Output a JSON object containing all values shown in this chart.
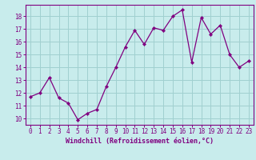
{
  "x": [
    0,
    1,
    2,
    3,
    4,
    5,
    6,
    7,
    8,
    9,
    10,
    11,
    12,
    13,
    14,
    15,
    16,
    17,
    18,
    19,
    20,
    21,
    22,
    23
  ],
  "y": [
    11.7,
    12.0,
    13.2,
    11.6,
    11.2,
    9.9,
    10.4,
    10.7,
    12.5,
    14.0,
    15.6,
    16.9,
    15.8,
    17.1,
    16.9,
    18.0,
    18.5,
    14.4,
    17.9,
    16.6,
    17.3,
    15.0,
    14.0,
    14.5
  ],
  "line_color": "#800080",
  "marker": "D",
  "marker_size": 2.2,
  "background_color": "#c8ecec",
  "grid_color": "#a0d0d0",
  "ylabel_vals": [
    10,
    11,
    12,
    13,
    14,
    15,
    16,
    17,
    18
  ],
  "ylim": [
    9.5,
    18.9
  ],
  "xlim": [
    -0.5,
    23.5
  ],
  "xlabel": "Windchill (Refroidissement éolien,°C)",
  "tick_color": "#800080",
  "spine_color": "#800080",
  "tick_fontsize": 5.5,
  "xlabel_fontsize": 6.0
}
